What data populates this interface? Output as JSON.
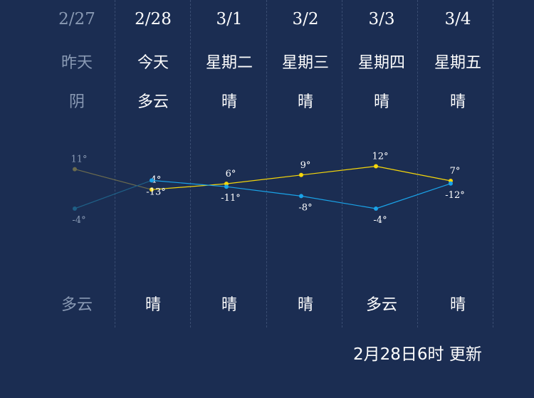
{
  "days": [
    {
      "date": "2/27",
      "name": "昨天",
      "weather_day": "阴",
      "weather_night": "多云",
      "past": true
    },
    {
      "date": "2/28",
      "name": "今天",
      "weather_day": "多云",
      "weather_night": "晴",
      "past": false
    },
    {
      "date": "3/1",
      "name": "星期二",
      "weather_day": "晴",
      "weather_night": "晴",
      "past": false
    },
    {
      "date": "3/2",
      "name": "星期三",
      "weather_day": "晴",
      "weather_night": "晴",
      "past": false
    },
    {
      "date": "3/3",
      "name": "星期四",
      "weather_day": "晴",
      "weather_night": "多云",
      "past": false
    },
    {
      "date": "3/4",
      "name": "星期五",
      "weather_day": "晴",
      "weather_night": "晴",
      "past": false
    }
  ],
  "updated_text": "2月28日6时 更新",
  "colors": {
    "background": "#1b2d52",
    "high_line": "#f5d60a",
    "low_line": "#1aa3e8",
    "past_high": "#6b6b4e",
    "past_low": "#1f5f86",
    "past_text": "#8a9ab4",
    "divider": "#3a4d72"
  },
  "chart_data": {
    "type": "line",
    "categories": [
      "2/27",
      "2/28",
      "3/1",
      "3/2",
      "3/3",
      "3/4"
    ],
    "unit": "°",
    "series": [
      {
        "key": "high",
        "values": [
          11,
          4,
          6,
          9,
          12,
          7
        ],
        "value_labels": [
          "11°",
          "4°",
          "6°",
          "9°",
          "12°",
          "7°"
        ]
      },
      {
        "key": "low",
        "values": [
          -4,
          -13,
          -11,
          -8,
          -4,
          -12
        ],
        "value_labels": [
          "-4°",
          "-13°",
          "-11°",
          "-8°",
          "-4°",
          "-12°"
        ]
      }
    ],
    "grid": false,
    "legend": "none"
  }
}
